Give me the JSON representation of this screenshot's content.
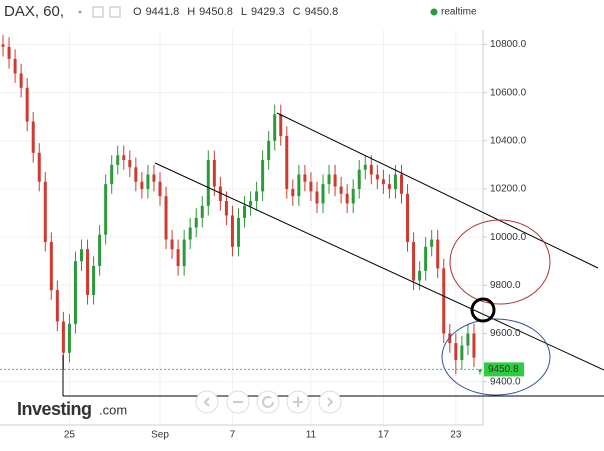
{
  "chart_data": {
    "type": "candlestick",
    "title": "DAX, 60,",
    "status": "realtime",
    "logo": {
      "brand": "Investing",
      "suffix": ".com"
    },
    "ohlc_labels": [
      "O",
      "H",
      "L",
      "C"
    ],
    "up_color": "#2b9a3a",
    "down_color": "#cf3a30",
    "last_price_color": "#2ecc40",
    "categories": [
      null,
      null,
      null,
      null,
      null,
      null,
      null,
      null,
      null,
      null,
      null,
      "25",
      null,
      null,
      null,
      null,
      null,
      null,
      null,
      null,
      null,
      null,
      null,
      null,
      null,
      null,
      "Sep",
      null,
      null,
      null,
      null,
      null,
      null,
      null,
      null,
      null,
      null,
      null,
      "7",
      null,
      null,
      null,
      null,
      null,
      null,
      null,
      null,
      null,
      null,
      null,
      null,
      "11",
      null,
      null,
      null,
      null,
      null,
      null,
      null,
      null,
      null,
      null,
      null,
      "17",
      null,
      null,
      null,
      null,
      null,
      null,
      null,
      null,
      null,
      null,
      null,
      "23",
      null,
      null,
      null,
      null
    ],
    "open": [
      10800,
      10790,
      10740,
      10680,
      10620,
      10480,
      10350,
      10230,
      9980,
      9780,
      9650,
      9520,
      9640,
      9900,
      9950,
      9760,
      9880,
      10010,
      10220,
      10300,
      10340,
      10320,
      10290,
      10230,
      10200,
      10260,
      10230,
      10170,
      9990,
      9950,
      9880,
      9990,
      10040,
      10080,
      10130,
      10320,
      10210,
      10150,
      10090,
      9960,
      10080,
      10130,
      10150,
      10190,
      10320,
      10400,
      10510,
      10420,
      10200,
      10170,
      10260,
      10230,
      10190,
      10140,
      10220,
      10260,
      10210,
      10180,
      10140,
      10200,
      10280,
      10300,
      10260,
      10240,
      10220,
      10200,
      10260,
      10180,
      9980,
      9820,
      9860,
      9960,
      9990,
      9870,
      9600,
      9560,
      9490,
      9550,
      9600,
      9441.8
    ],
    "high": [
      10840,
      10830,
      10780,
      10720,
      10660,
      10520,
      10390,
      10270,
      10020,
      9820,
      9690,
      9680,
      9940,
      9990,
      9990,
      9920,
      10050,
      10260,
      10340,
      10380,
      10380,
      10360,
      10330,
      10270,
      10300,
      10300,
      10270,
      10210,
      10030,
      9990,
      10030,
      10080,
      10120,
      10170,
      10360,
      10360,
      10250,
      10190,
      10130,
      10120,
      10170,
      10190,
      10230,
      10360,
      10440,
      10550,
      10550,
      10460,
      10240,
      10300,
      10300,
      10270,
      10230,
      10260,
      10300,
      10300,
      10250,
      10220,
      10240,
      10320,
      10340,
      10340,
      10300,
      10280,
      10260,
      10300,
      10300,
      10220,
      10020,
      9900,
      10000,
      10030,
      10030,
      9910,
      9640,
      9600,
      9590,
      9640,
      9640,
      9450.8
    ],
    "low": [
      10750,
      10700,
      10640,
      10580,
      10440,
      10310,
      10190,
      9940,
      9740,
      9610,
      9450,
      9480,
      9600,
      9860,
      9720,
      9720,
      9840,
      9970,
      10180,
      10260,
      10280,
      10250,
      10190,
      10160,
      10160,
      10190,
      10130,
      9950,
      9910,
      9840,
      9840,
      9950,
      10000,
      10040,
      10090,
      10170,
      10110,
      10050,
      9920,
      9920,
      10040,
      10090,
      10110,
      10150,
      10280,
      10360,
      10380,
      10160,
      10130,
      10130,
      10190,
      10150,
      10100,
      10100,
      10180,
      10170,
      10140,
      10100,
      10100,
      10160,
      10240,
      10220,
      10200,
      10180,
      10160,
      10160,
      10140,
      9940,
      9780,
      9780,
      9820,
      9920,
      9830,
      9560,
      9520,
      9430,
      9450,
      9510,
      9460,
      9429.3
    ],
    "close": [
      10790,
      10740,
      10680,
      10620,
      10480,
      10350,
      10230,
      9980,
      9780,
      9650,
      9520,
      9640,
      9900,
      9950,
      9760,
      9880,
      10010,
      10220,
      10300,
      10340,
      10320,
      10290,
      10230,
      10200,
      10260,
      10230,
      10170,
      9990,
      9950,
      9880,
      9990,
      10040,
      10080,
      10130,
      10320,
      10210,
      10150,
      10090,
      9960,
      10080,
      10130,
      10150,
      10190,
      10320,
      10400,
      10510,
      10420,
      10200,
      10170,
      10260,
      10230,
      10190,
      10140,
      10220,
      10260,
      10210,
      10180,
      10140,
      10200,
      10280,
      10300,
      10260,
      10240,
      10220,
      10200,
      10260,
      10180,
      9980,
      9820,
      9860,
      9960,
      9990,
      9870,
      9600,
      9560,
      9490,
      9550,
      9600,
      9500,
      9450.8
    ],
    "ylim": [
      9220,
      10860
    ],
    "yticks": [
      {
        "value": 9400,
        "label": "9400.0"
      },
      {
        "value": 9600,
        "label": "9600.0"
      },
      {
        "value": 9800,
        "label": "9800.0"
      },
      {
        "value": 10000,
        "label": "10000.0"
      },
      {
        "value": 10200,
        "label": "10200.0"
      },
      {
        "value": 10400,
        "label": "10400.0"
      },
      {
        "value": 10600,
        "label": "10600.0"
      },
      {
        "value": 10800,
        "label": "10800.0"
      }
    ],
    "grid": true
  }
}
